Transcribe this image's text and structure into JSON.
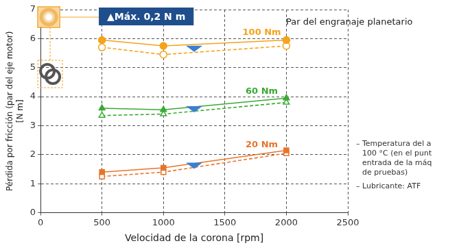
{
  "chart_data": {
    "type": "line",
    "xlabel": "Velocidad de la corona [rpm]",
    "ylabel": [
      "Pérdida por fricción (par del eje motor)",
      "[N m]"
    ],
    "x": [
      500,
      1000,
      2000
    ],
    "series": [
      {
        "name": "100 Nm",
        "color": "#f5a31a",
        "marker": "circle",
        "line_style": "solid",
        "values": [
          5.95,
          5.75,
          5.95
        ]
      },
      {
        "name": "100 Nm",
        "color": "#f5a31a",
        "marker": "open_circle",
        "line_style": "dashed",
        "values": [
          5.7,
          5.45,
          5.75
        ]
      },
      {
        "name": "60 Nm",
        "color": "#3aaa35",
        "marker": "triangle",
        "line_style": "solid",
        "values": [
          3.6,
          3.55,
          3.95
        ]
      },
      {
        "name": "60 Nm",
        "color": "#3aaa35",
        "marker": "open_triangle",
        "line_style": "dashed",
        "values": [
          3.35,
          3.4,
          3.8
        ]
      },
      {
        "name": "20 Nm",
        "color": "#e8742a",
        "marker": "square",
        "line_style": "solid",
        "values": [
          1.4,
          1.55,
          2.15
        ]
      },
      {
        "name": "20 Nm",
        "color": "#e8742a",
        "marker": "open_square",
        "line_style": "dashed",
        "values": [
          1.25,
          1.4,
          2.05
        ]
      }
    ],
    "xlim": [
      0,
      2500
    ],
    "xticks": [
      0,
      500,
      1000,
      1500,
      2000,
      2500
    ],
    "ylim": [
      0,
      7
    ],
    "yticks": [
      0,
      1,
      2,
      3,
      4,
      5,
      6,
      7
    ],
    "grid": true,
    "annotations": [
      "▲Máx. 0,2 N m",
      "Par del engranaje planetario"
    ],
    "notes": [
      "– Temperatura del a",
      "100 °C (en el punt",
      "entrada de la máq",
      "de pruebas)",
      "– Lubricante: ATF"
    ]
  }
}
